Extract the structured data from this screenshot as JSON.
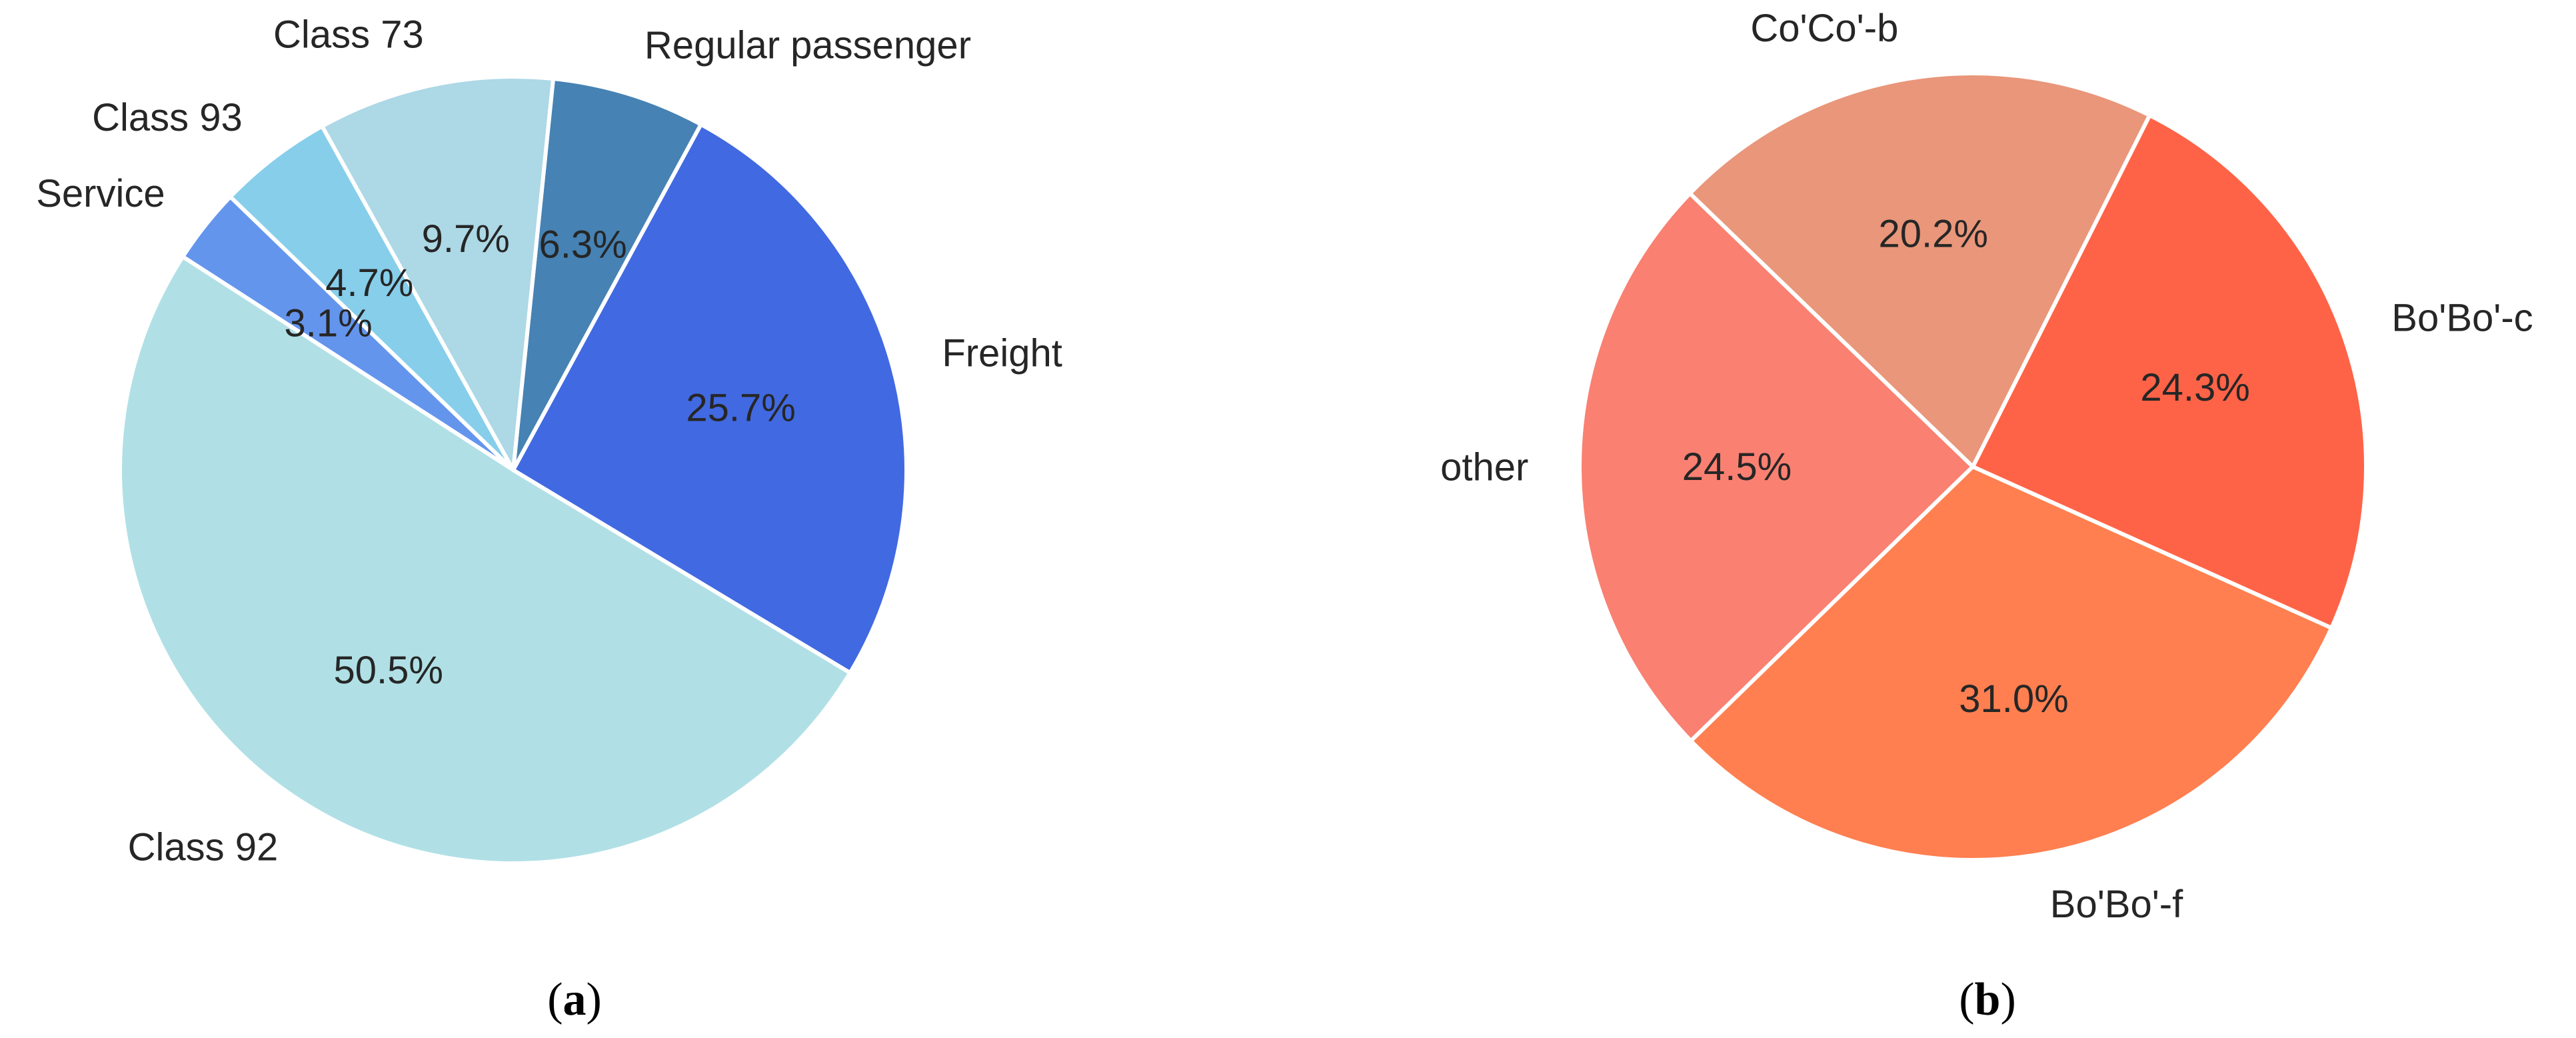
{
  "chart_data": [
    {
      "type": "pie",
      "panel_label": "a",
      "start_angle_deg": 136,
      "slices": [
        {
          "label": "Service",
          "value": 3.1,
          "pct_text": "3.1%",
          "color": "#6495ED"
        },
        {
          "label": "Class 92",
          "value": 50.5,
          "pct_text": "50.5%",
          "color": "#B0E0E6"
        },
        {
          "label": "Freight",
          "value": 25.7,
          "pct_text": "25.7%",
          "color": "#4169E1"
        },
        {
          "label": "Regular passenger",
          "value": 6.3,
          "pct_text": "6.3%",
          "color": "#4682B4"
        },
        {
          "label": "Class 73",
          "value": 9.7,
          "pct_text": "9.7%",
          "color": "#ADD8E6"
        },
        {
          "label": "Class 93",
          "value": 4.7,
          "pct_text": "4.7%",
          "color": "#87CEEB"
        }
      ]
    },
    {
      "type": "pie",
      "panel_label": "b",
      "start_angle_deg": 136,
      "slices": [
        {
          "label": "other",
          "value": 24.5,
          "pct_text": "24.5%",
          "color": "#FA8072"
        },
        {
          "label": "Bo'Bo'-f",
          "value": 31.0,
          "pct_text": "31.0%",
          "color": "#FF7F50"
        },
        {
          "label": "Bo'Bo'-c",
          "value": 24.3,
          "pct_text": "24.3%",
          "color": "#FF6347"
        },
        {
          "label": "Co'Co'-b",
          "value": 20.2,
          "pct_text": "20.2%",
          "color": "#E9967A"
        }
      ]
    }
  ]
}
